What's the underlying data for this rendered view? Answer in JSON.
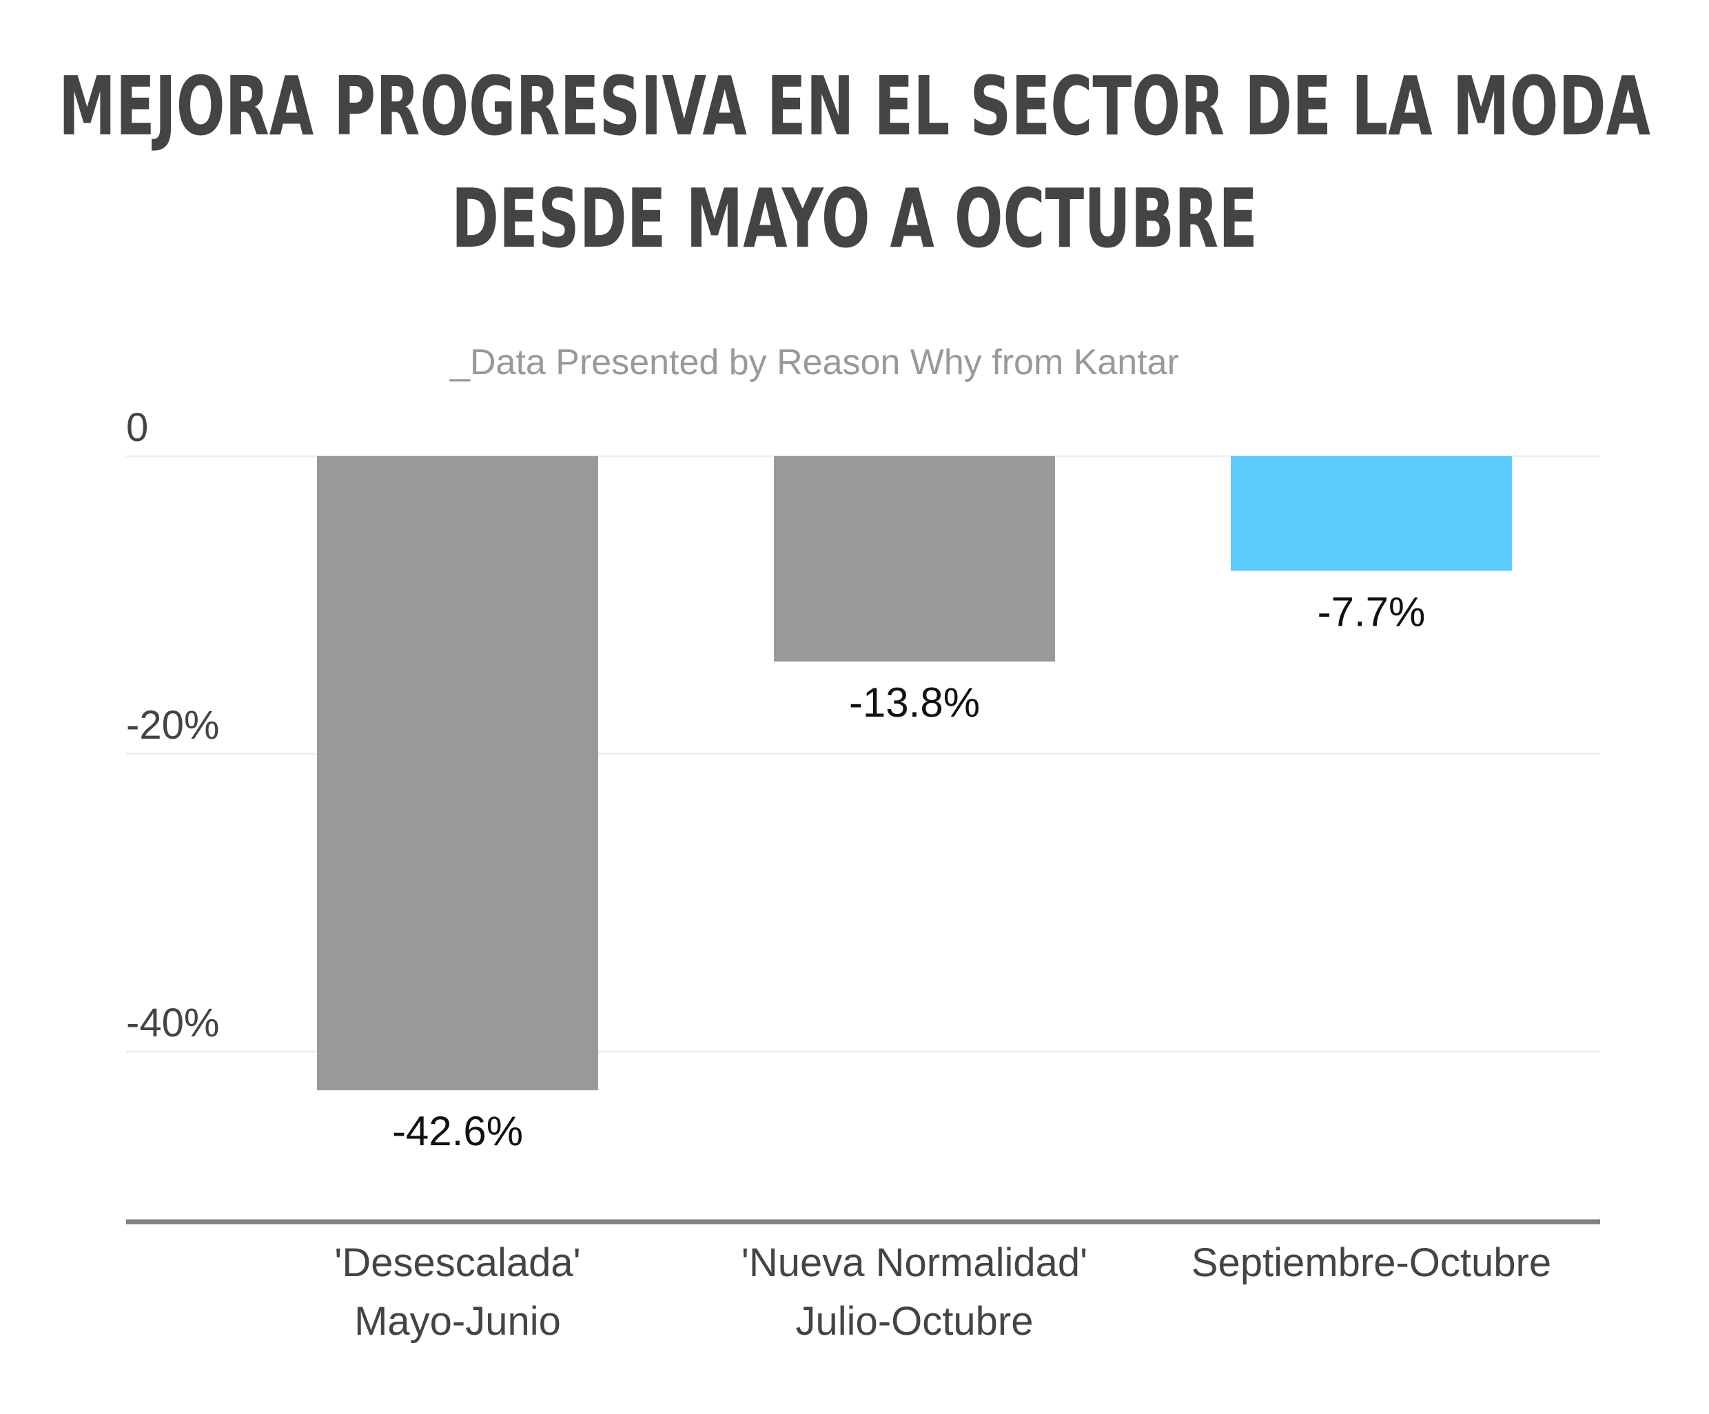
{
  "chart_data": {
    "type": "bar",
    "title_lines": [
      "MEJORA PROGRESIVA EN EL SECTOR DE LA MODA",
      "DESDE MAYO A OCTUBRE"
    ],
    "subtitle": "_Data Presented by Reason Why from Kantar",
    "categories": [
      [
        "'Desescalada'",
        "Mayo-Junio"
      ],
      [
        "'Nueva Normalidad'",
        "Julio-Octubre"
      ],
      [
        "Septiembre-Octubre"
      ]
    ],
    "values": [
      -42.6,
      -13.8,
      -7.7
    ],
    "data_labels": [
      "-42.6%",
      "-13.8%",
      "-7.7%"
    ],
    "y_ticks": [
      0,
      -20,
      -40
    ],
    "y_tick_labels": [
      "0",
      "-20%",
      "-40%"
    ],
    "ylim": [
      -51.5,
      0
    ],
    "grid": true,
    "colors": {
      "bar_default": "#999999",
      "bar_highlight": "#5ACBFA",
      "title": "#444444",
      "subtitle": "#999999",
      "gridline": "#EEEEEE",
      "baseline": "#808080"
    },
    "highlight_index": 2
  }
}
